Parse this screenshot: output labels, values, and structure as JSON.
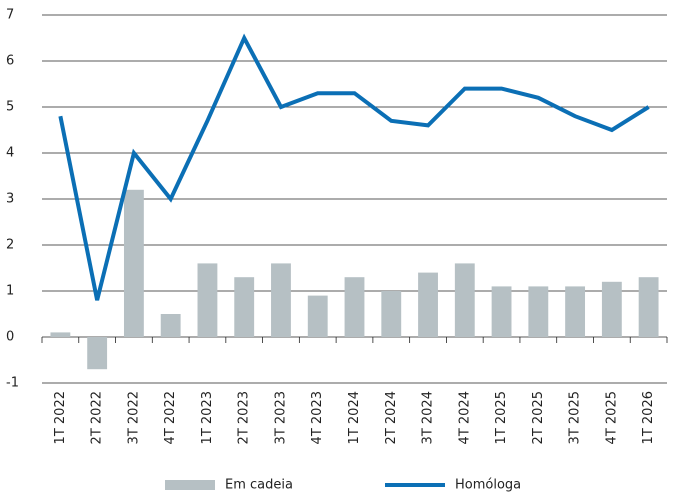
{
  "chart_data": {
    "type": "combo",
    "categories": [
      "1T 2022",
      "2T 2022",
      "3T 2022",
      "4T 2022",
      "1T 2023",
      "2T 2023",
      "3T 2023",
      "4T 2023",
      "1T 2024",
      "2T 2024",
      "3T 2024",
      "4T 2024",
      "1T 2025",
      "2T 2025",
      "3T 2025",
      "4T 2025",
      "1T 2026"
    ],
    "series": [
      {
        "name": "Em cadeia",
        "type": "bar",
        "color": "#b6c0c4",
        "values": [
          0.1,
          -0.7,
          3.2,
          0.5,
          1.6,
          1.3,
          1.6,
          0.9,
          1.3,
          1.0,
          1.4,
          1.6,
          1.1,
          1.1,
          1.1,
          1.2,
          1.3
        ]
      },
      {
        "name": "Homóloga",
        "type": "line",
        "color": "#0b6fb5",
        "values": [
          4.8,
          0.8,
          4.0,
          3.0,
          4.7,
          6.5,
          5.0,
          5.3,
          5.3,
          4.7,
          4.6,
          5.4,
          5.4,
          5.2,
          4.8,
          4.5,
          5.0
        ]
      }
    ],
    "ylim": [
      -1,
      7
    ],
    "yticks": [
      -1,
      0,
      1,
      2,
      3,
      4,
      5,
      6,
      7
    ],
    "grid": true,
    "legend": "bottom"
  }
}
